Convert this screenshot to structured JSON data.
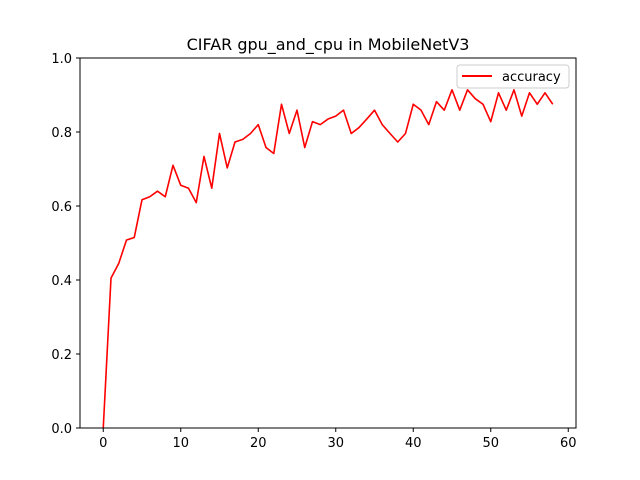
{
  "chart_data": {
    "type": "line",
    "title": "CIFAR gpu_and_cpu in MobileNetV3",
    "xlabel": "",
    "ylabel": "",
    "xlim": [
      -3.0,
      61.0
    ],
    "ylim": [
      0.0,
      1.0
    ],
    "xticks": [
      0,
      10,
      20,
      30,
      40,
      50,
      60
    ],
    "yticks": [
      0.0,
      0.2,
      0.4,
      0.6,
      0.8,
      1.0
    ],
    "xtick_labels": [
      "0",
      "10",
      "20",
      "30",
      "40",
      "50",
      "60"
    ],
    "ytick_labels": [
      "0.0",
      "0.2",
      "0.4",
      "0.6",
      "0.8",
      "1.0"
    ],
    "grid": false,
    "legend_position": "top-right",
    "series": [
      {
        "name": "accuracy",
        "color": "#ff0000",
        "x": [
          0,
          1,
          2,
          3,
          4,
          5,
          6,
          7,
          8,
          9,
          10,
          11,
          12,
          13,
          14,
          15,
          16,
          17,
          18,
          19,
          20,
          21,
          22,
          23,
          24,
          25,
          26,
          27,
          28,
          29,
          30,
          31,
          32,
          33,
          34,
          35,
          36,
          37,
          38,
          39,
          40,
          41,
          42,
          43,
          44,
          45,
          46,
          47,
          48,
          49,
          50,
          51,
          52,
          53,
          54,
          55,
          56,
          57,
          58
        ],
        "values": [
          0.0,
          0.405,
          0.445,
          0.508,
          0.515,
          0.617,
          0.625,
          0.64,
          0.625,
          0.71,
          0.656,
          0.648,
          0.609,
          0.734,
          0.648,
          0.796,
          0.703,
          0.773,
          0.78,
          0.796,
          0.82,
          0.758,
          0.742,
          0.875,
          0.796,
          0.859,
          0.758,
          0.828,
          0.82,
          0.835,
          0.843,
          0.859,
          0.796,
          0.812,
          0.835,
          0.859,
          0.82,
          0.796,
          0.773,
          0.796,
          0.875,
          0.859,
          0.82,
          0.882,
          0.859,
          0.914,
          0.859,
          0.914,
          0.89,
          0.875,
          0.828,
          0.906,
          0.859,
          0.914,
          0.843,
          0.906,
          0.875,
          0.906,
          0.875
        ]
      }
    ]
  }
}
